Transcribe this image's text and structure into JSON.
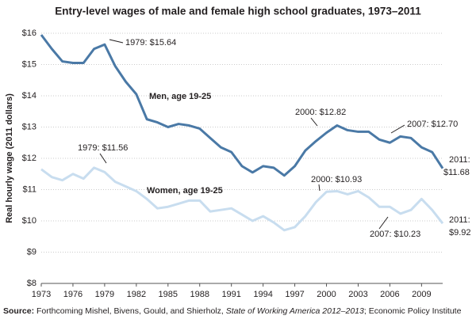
{
  "chart_data": {
    "type": "line",
    "title": "Entry-level wages of male and female high school graduates, 1973–2011",
    "y_label": "Real hourly wage (2011 dollars)",
    "x": [
      1973,
      1974,
      1975,
      1976,
      1977,
      1978,
      1979,
      1980,
      1981,
      1982,
      1983,
      1984,
      1985,
      1986,
      1987,
      1988,
      1989,
      1990,
      1991,
      1992,
      1993,
      1994,
      1995,
      1996,
      1997,
      1998,
      1999,
      2000,
      2001,
      2002,
      2003,
      2004,
      2005,
      2006,
      2007,
      2008,
      2009,
      2010,
      2011
    ],
    "series": [
      {
        "name": "Men, age 19-25",
        "color": "#4a79a6",
        "values": [
          15.95,
          15.5,
          15.1,
          15.05,
          15.05,
          15.5,
          15.64,
          14.95,
          14.45,
          14.05,
          13.25,
          13.15,
          13.0,
          13.1,
          13.05,
          12.95,
          12.65,
          12.35,
          12.2,
          11.75,
          11.55,
          11.75,
          11.7,
          11.45,
          11.75,
          12.25,
          12.55,
          12.82,
          13.05,
          12.9,
          12.85,
          12.85,
          12.6,
          12.5,
          12.7,
          12.65,
          12.35,
          12.2,
          11.68
        ]
      },
      {
        "name": "Women, age 19-25",
        "color": "#c8ddef",
        "values": [
          11.65,
          11.4,
          11.3,
          11.5,
          11.35,
          11.7,
          11.56,
          11.25,
          11.1,
          10.95,
          10.7,
          10.4,
          10.45,
          10.55,
          10.65,
          10.65,
          10.3,
          10.35,
          10.4,
          10.2,
          10.0,
          10.15,
          9.95,
          9.7,
          9.8,
          10.15,
          10.6,
          10.93,
          10.95,
          10.85,
          10.95,
          10.75,
          10.45,
          10.45,
          10.23,
          10.35,
          10.7,
          10.35,
          9.92
        ]
      }
    ],
    "xlim": [
      1973,
      2011
    ],
    "xticks": [
      1973,
      1976,
      1979,
      1982,
      1985,
      1988,
      1991,
      1994,
      1997,
      2000,
      2003,
      2006,
      2009
    ],
    "ylim": [
      8,
      16
    ],
    "yticks": [
      {
        "value": 8,
        "label": "$8"
      },
      {
        "value": 9,
        "label": "$9"
      },
      {
        "value": 10,
        "label": "$10"
      },
      {
        "value": 11,
        "label": "$11"
      },
      {
        "value": 12,
        "label": "$12"
      },
      {
        "value": 13,
        "label": "$13"
      },
      {
        "value": 14,
        "label": "$14"
      },
      {
        "value": 15,
        "label": "$15"
      },
      {
        "value": 16,
        "label": "$16"
      }
    ],
    "grid": true,
    "annotations": [
      {
        "text": "1979: $15.64"
      },
      {
        "text": "1979: $11.56"
      },
      {
        "text": "2000: $12.82"
      },
      {
        "text": "2007: $12.70"
      },
      {
        "text": "2000: $10.93"
      },
      {
        "text": "2007: $10.23"
      },
      {
        "lines": [
          "2011:",
          "$11.68"
        ]
      },
      {
        "lines": [
          "2011:",
          "$9.92"
        ]
      }
    ],
    "source": {
      "label": "Source:",
      "parts": [
        "Forthcoming Mishel, Bivens, Gould, and Shierholz, ",
        "State of Working America 2012–2013",
        "; Economic Policy Institute"
      ]
    }
  }
}
